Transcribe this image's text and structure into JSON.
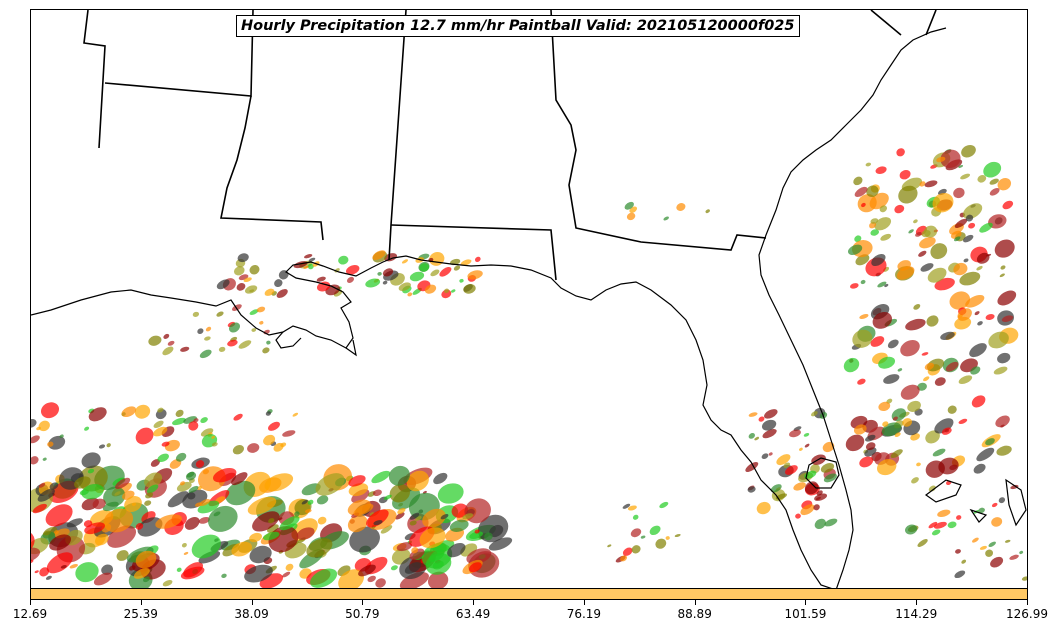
{
  "title": "Hourly Precipitation 12.7 mm/hr Paintball Valid: 202105120000f025",
  "colors": {
    "coastline": "#000000",
    "colorbar_fill": "#ffc864",
    "members": [
      "#ff0000",
      "#8b0000",
      "#ff8c00",
      "#22cc22",
      "#2e8b2e",
      "#808000",
      "#ffa500",
      "#b22222",
      "#333333",
      "#a0a020"
    ]
  },
  "colorbar": {
    "ticks": [
      "12.69",
      "25.39",
      "38.09",
      "50.79",
      "63.49",
      "76.19",
      "88.89",
      "101.59",
      "114.29",
      "126.99"
    ]
  },
  "map": {
    "region": "US Gulf Coast and Florida",
    "feature_icons": [
      "coastline",
      "state-borders",
      "precipitation-blobs"
    ]
  }
}
